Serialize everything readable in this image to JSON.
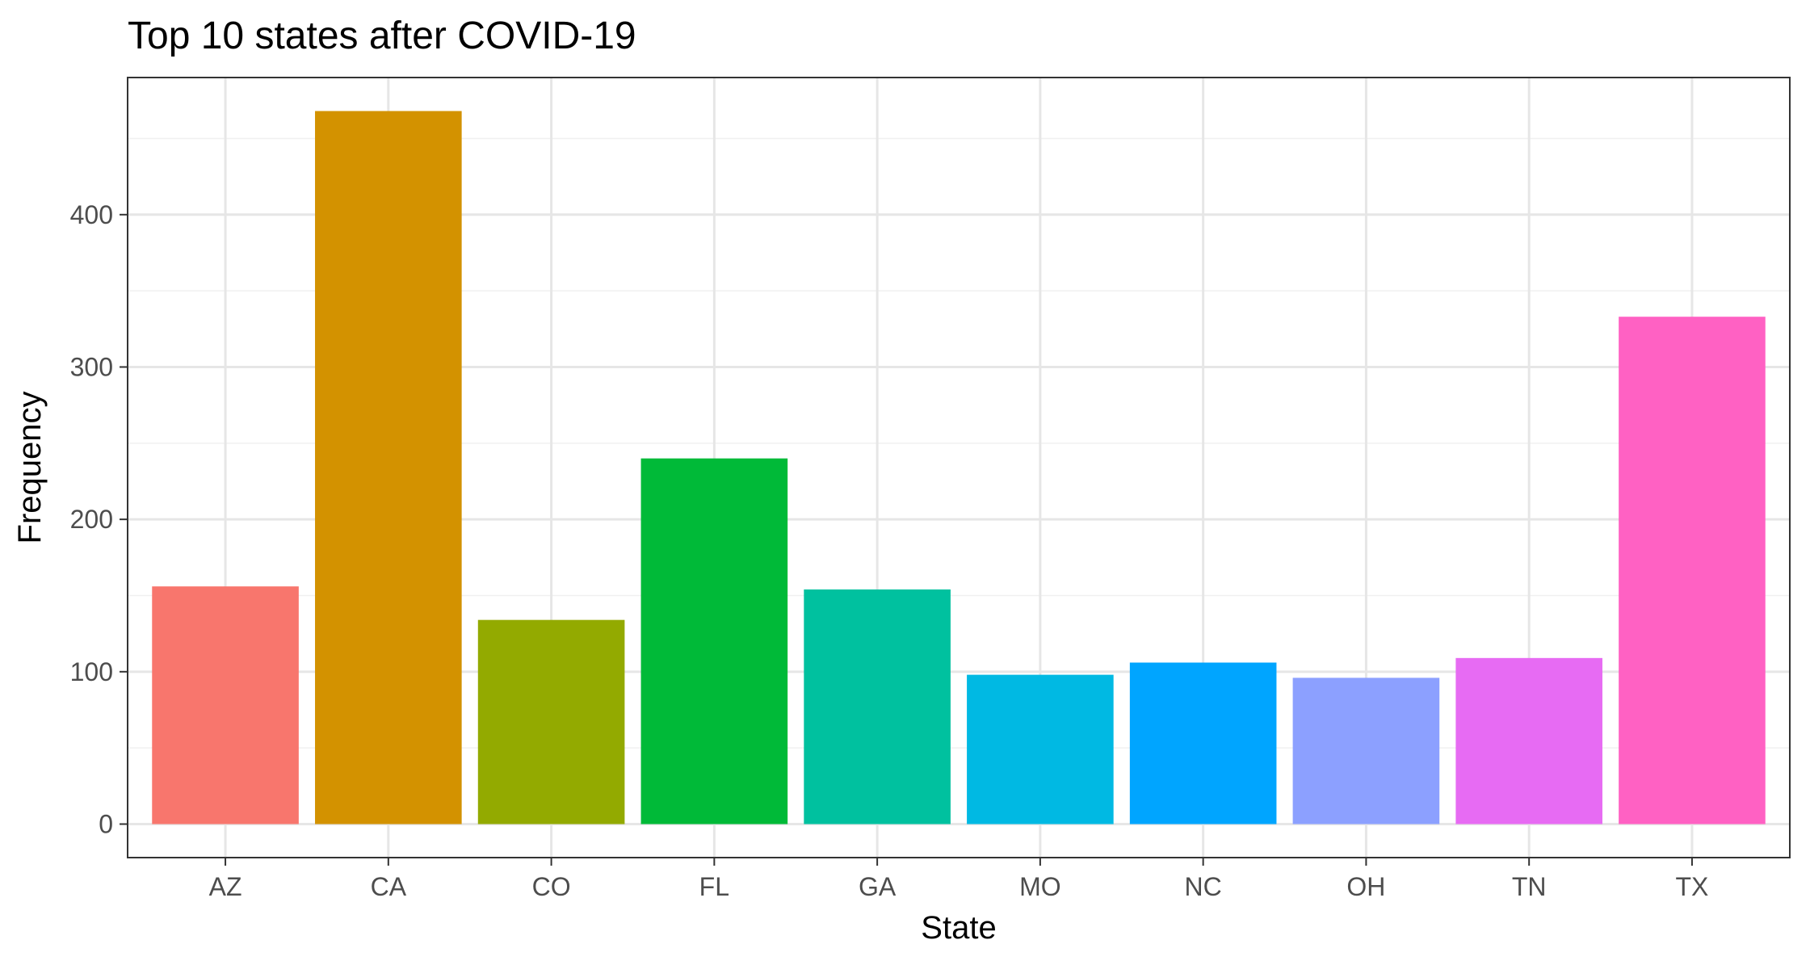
{
  "chart_data": {
    "type": "bar",
    "title": "Top 10 states after COVID-19",
    "xlabel": "State",
    "ylabel": "Frequency",
    "categories": [
      "AZ",
      "CA",
      "CO",
      "FL",
      "GA",
      "MO",
      "NC",
      "OH",
      "TN",
      "TX"
    ],
    "values": [
      156,
      468,
      134,
      240,
      154,
      98,
      106,
      96,
      109,
      333
    ],
    "colors": [
      "#F8766D",
      "#D39200",
      "#93AA00",
      "#00BA38",
      "#00C19F",
      "#00B9E3",
      "#00A5FF",
      "#8CA0FF",
      "#E76BF3",
      "#FF61C3"
    ],
    "ylim": [
      -22,
      490
    ],
    "yticks": [
      0,
      100,
      200,
      300,
      400
    ],
    "grid": true,
    "legend": "none"
  }
}
